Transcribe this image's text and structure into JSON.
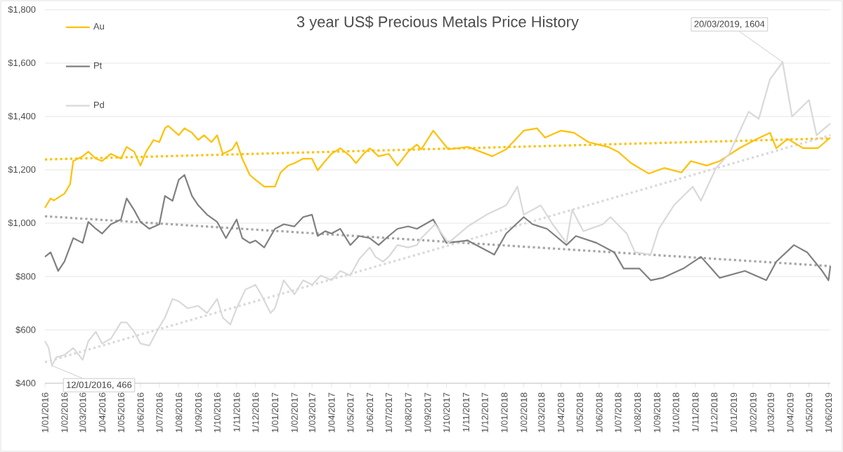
{
  "chart_data": {
    "type": "line",
    "title": "3 year US$ Precious Metals Price History",
    "xlim": [
      "2016-01-01",
      "2019-06-04"
    ],
    "xticks": [
      {
        "value": "2016-01-01",
        "label": "1/01/2016"
      },
      {
        "value": "2016-02-01",
        "label": "1/02/2016"
      },
      {
        "value": "2016-03-01",
        "label": "1/03/2016"
      },
      {
        "value": "2016-04-01",
        "label": "1/04/2016"
      },
      {
        "value": "2016-05-01",
        "label": "1/05/2016"
      },
      {
        "value": "2016-06-01",
        "label": "1/06/2016"
      },
      {
        "value": "2016-07-01",
        "label": "1/07/2016"
      },
      {
        "value": "2016-08-01",
        "label": "1/08/2016"
      },
      {
        "value": "2016-09-01",
        "label": "1/09/2016"
      },
      {
        "value": "2016-10-01",
        "label": "1/10/2016"
      },
      {
        "value": "2016-11-01",
        "label": "1/11/2016"
      },
      {
        "value": "2016-12-01",
        "label": "1/12/2016"
      },
      {
        "value": "2017-01-01",
        "label": "1/01/2017"
      },
      {
        "value": "2017-02-01",
        "label": "1/02/2017"
      },
      {
        "value": "2017-03-01",
        "label": "1/03/2017"
      },
      {
        "value": "2017-04-01",
        "label": "1/04/2017"
      },
      {
        "value": "2017-05-01",
        "label": "1/05/2017"
      },
      {
        "value": "2017-06-01",
        "label": "1/06/2017"
      },
      {
        "value": "2017-07-01",
        "label": "1/07/2017"
      },
      {
        "value": "2017-08-01",
        "label": "1/08/2017"
      },
      {
        "value": "2017-09-01",
        "label": "1/09/2017"
      },
      {
        "value": "2017-10-01",
        "label": "1/10/2017"
      },
      {
        "value": "2017-11-01",
        "label": "1/11/2017"
      },
      {
        "value": "2017-12-01",
        "label": "1/12/2017"
      },
      {
        "value": "2018-01-01",
        "label": "1/01/2018"
      },
      {
        "value": "2018-02-01",
        "label": "1/02/2018"
      },
      {
        "value": "2018-03-01",
        "label": "1/03/2018"
      },
      {
        "value": "2018-04-01",
        "label": "1/04/2018"
      },
      {
        "value": "2018-05-01",
        "label": "1/05/2018"
      },
      {
        "value": "2018-06-01",
        "label": "1/06/2018"
      },
      {
        "value": "2018-07-01",
        "label": "1/07/2018"
      },
      {
        "value": "2018-08-01",
        "label": "1/08/2018"
      },
      {
        "value": "2018-09-01",
        "label": "1/09/2018"
      },
      {
        "value": "2018-10-01",
        "label": "1/10/2018"
      },
      {
        "value": "2018-11-01",
        "label": "1/11/2018"
      },
      {
        "value": "2018-12-01",
        "label": "1/12/2018"
      },
      {
        "value": "2019-01-01",
        "label": "1/01/2019"
      },
      {
        "value": "2019-02-01",
        "label": "1/02/2019"
      },
      {
        "value": "2019-03-01",
        "label": "1/03/2019"
      },
      {
        "value": "2019-04-01",
        "label": "1/04/2019"
      },
      {
        "value": "2019-05-01",
        "label": "1/05/2019"
      },
      {
        "value": "2019-06-01",
        "label": "1/06/2019"
      }
    ],
    "ylim": [
      400,
      1800
    ],
    "yticks": [
      {
        "value": 400,
        "label": "$400"
      },
      {
        "value": 600,
        "label": "$600"
      },
      {
        "value": 800,
        "label": "$800"
      },
      {
        "value": 1000,
        "label": "$1,000"
      },
      {
        "value": 1200,
        "label": "$1,200"
      },
      {
        "value": 1400,
        "label": "$1,400"
      },
      {
        "value": 1600,
        "label": "$1,600"
      },
      {
        "value": 1800,
        "label": "$1,800"
      }
    ],
    "grid": "y",
    "legend": "top left",
    "series": [
      {
        "name": "Au",
        "color": "#ffc000",
        "x": [
          "2016-01-01",
          "2016-01-10",
          "2016-01-15",
          "2016-02-01",
          "2016-02-10",
          "2016-02-15",
          "2016-03-01",
          "2016-03-10",
          "2016-03-22",
          "2016-04-01",
          "2016-04-15",
          "2016-05-01",
          "2016-05-10",
          "2016-05-22",
          "2016-06-01",
          "2016-06-10",
          "2016-06-22",
          "2016-07-01",
          "2016-07-10",
          "2016-07-15",
          "2016-08-01",
          "2016-08-10",
          "2016-08-22",
          "2016-09-01",
          "2016-09-10",
          "2016-09-22",
          "2016-10-01",
          "2016-10-10",
          "2016-10-25",
          "2016-11-01",
          "2016-11-10",
          "2016-11-22",
          "2016-12-01",
          "2016-12-15",
          "2017-01-01",
          "2017-01-10",
          "2017-01-22",
          "2017-02-01",
          "2017-02-15",
          "2017-03-01",
          "2017-03-10",
          "2017-03-22",
          "2017-04-01",
          "2017-04-15",
          "2017-05-01",
          "2017-05-10",
          "2017-05-22",
          "2017-06-01",
          "2017-06-15",
          "2017-07-01",
          "2017-07-15",
          "2017-08-01",
          "2017-08-15",
          "2017-08-22",
          "2017-09-10",
          "2017-10-04",
          "2017-11-04",
          "2017-12-13",
          "2018-01-04",
          "2018-02-01",
          "2018-02-22",
          "2018-03-07",
          "2018-04-01",
          "2018-04-22",
          "2018-05-15",
          "2018-06-15",
          "2018-07-01",
          "2018-07-22",
          "2018-08-19",
          "2018-09-13",
          "2018-10-10",
          "2018-10-25",
          "2018-11-19",
          "2018-12-10",
          "2019-01-10",
          "2019-02-07",
          "2019-02-28",
          "2019-03-10",
          "2019-03-28",
          "2019-04-22",
          "2019-05-15",
          "2019-06-04"
        ],
        "values": [
          1058,
          1093,
          1085,
          1111,
          1146,
          1233,
          1251,
          1268,
          1242,
          1233,
          1260,
          1242,
          1286,
          1268,
          1216,
          1268,
          1312,
          1304,
          1356,
          1365,
          1330,
          1356,
          1339,
          1312,
          1330,
          1304,
          1330,
          1260,
          1277,
          1304,
          1242,
          1181,
          1163,
          1137,
          1137,
          1190,
          1216,
          1225,
          1242,
          1242,
          1198,
          1233,
          1260,
          1281,
          1251,
          1225,
          1260,
          1281,
          1251,
          1260,
          1216,
          1268,
          1295,
          1277,
          1347,
          1277,
          1286,
          1251,
          1277,
          1347,
          1356,
          1321,
          1347,
          1339,
          1304,
          1286,
          1268,
          1225,
          1186,
          1207,
          1190,
          1233,
          1216,
          1233,
          1281,
          1316,
          1339,
          1281,
          1316,
          1281,
          1281,
          1321
        ]
      },
      {
        "name": "Pt",
        "color": "#808080",
        "x": [
          "2016-01-01",
          "2016-01-10",
          "2016-01-22",
          "2016-02-01",
          "2016-02-15",
          "2016-03-01",
          "2016-03-10",
          "2016-03-22",
          "2016-04-01",
          "2016-04-15",
          "2016-05-01",
          "2016-05-10",
          "2016-05-22",
          "2016-06-01",
          "2016-06-15",
          "2016-07-01",
          "2016-07-10",
          "2016-07-22",
          "2016-08-01",
          "2016-08-10",
          "2016-08-22",
          "2016-09-01",
          "2016-09-15",
          "2016-10-01",
          "2016-10-15",
          "2016-11-01",
          "2016-11-10",
          "2016-11-22",
          "2016-12-01",
          "2016-12-15",
          "2017-01-01",
          "2017-01-15",
          "2017-02-01",
          "2017-02-15",
          "2017-03-01",
          "2017-03-10",
          "2017-03-22",
          "2017-04-01",
          "2017-04-15",
          "2017-05-01",
          "2017-05-15",
          "2017-06-01",
          "2017-06-15",
          "2017-07-01",
          "2017-07-15",
          "2017-08-01",
          "2017-08-15",
          "2017-09-10",
          "2017-10-01",
          "2017-11-04",
          "2017-12-16",
          "2018-01-04",
          "2018-02-01",
          "2018-02-15",
          "2018-03-10",
          "2018-04-10",
          "2018-04-25",
          "2018-05-28",
          "2018-06-25",
          "2018-07-10",
          "2018-08-04",
          "2018-08-22",
          "2018-09-10",
          "2018-10-13",
          "2018-11-10",
          "2018-12-10",
          "2019-01-19",
          "2019-02-22",
          "2019-03-10",
          "2019-04-07",
          "2019-04-28",
          "2019-05-22",
          "2019-06-01",
          "2019-06-04"
        ],
        "values": [
          874,
          891,
          821,
          856,
          944,
          926,
          1005,
          979,
          961,
          996,
          1014,
          1093,
          1049,
          1005,
          979,
          996,
          1102,
          1084,
          1163,
          1181,
          1102,
          1067,
          1032,
          1005,
          944,
          1014,
          944,
          926,
          935,
          909,
          979,
          996,
          988,
          1023,
          1032,
          952,
          970,
          961,
          979,
          918,
          952,
          944,
          918,
          952,
          979,
          988,
          979,
          1014,
          926,
          935,
          882,
          961,
          1023,
          996,
          979,
          918,
          952,
          926,
          891,
          830,
          830,
          786,
          795,
          830,
          874,
          795,
          821,
          786,
          856,
          918,
          891,
          821,
          786,
          839
        ]
      },
      {
        "name": "Pd",
        "color": "#d9d9d9",
        "x": [
          "2016-01-01",
          "2016-01-07",
          "2016-01-12",
          "2016-01-19",
          "2016-02-01",
          "2016-02-15",
          "2016-03-01",
          "2016-03-10",
          "2016-03-22",
          "2016-04-01",
          "2016-04-15",
          "2016-05-01",
          "2016-05-10",
          "2016-05-22",
          "2016-06-01",
          "2016-06-15",
          "2016-07-01",
          "2016-07-10",
          "2016-07-22",
          "2016-08-01",
          "2016-08-15",
          "2016-09-01",
          "2016-09-15",
          "2016-10-01",
          "2016-10-10",
          "2016-10-22",
          "2016-11-01",
          "2016-11-15",
          "2016-12-01",
          "2016-12-10",
          "2016-12-25",
          "2017-01-01",
          "2017-01-15",
          "2017-02-01",
          "2017-02-15",
          "2017-03-01",
          "2017-03-15",
          "2017-04-01",
          "2017-04-15",
          "2017-05-01",
          "2017-05-15",
          "2017-06-01",
          "2017-06-10",
          "2017-06-22",
          "2017-07-01",
          "2017-07-15",
          "2017-08-01",
          "2017-08-15",
          "2017-08-22",
          "2017-09-13",
          "2017-10-04",
          "2017-11-04",
          "2017-12-04",
          "2018-01-04",
          "2018-01-22",
          "2018-02-01",
          "2018-02-28",
          "2018-03-19",
          "2018-04-10",
          "2018-04-19",
          "2018-05-07",
          "2018-06-07",
          "2018-06-19",
          "2018-07-15",
          "2018-07-28",
          "2018-08-22",
          "2018-09-04",
          "2018-09-28",
          "2018-10-28",
          "2018-11-10",
          "2018-12-04",
          "2018-12-25",
          "2019-01-25",
          "2019-02-10",
          "2019-02-28",
          "2019-03-20",
          "2019-04-04",
          "2019-05-01",
          "2019-05-13",
          "2019-06-04"
        ],
        "values": [
          558,
          532,
          466,
          497,
          506,
          532,
          488,
          558,
          593,
          549,
          567,
          628,
          628,
          593,
          549,
          541,
          611,
          646,
          716,
          707,
          681,
          690,
          663,
          716,
          646,
          620,
          681,
          751,
          769,
          733,
          663,
          681,
          786,
          733,
          786,
          769,
          804,
          786,
          821,
          804,
          865,
          909,
          874,
          856,
          874,
          918,
          909,
          918,
          944,
          996,
          926,
          988,
          1032,
          1067,
          1137,
          1032,
          1067,
          996,
          926,
          1050,
          970,
          996,
          1023,
          961,
          891,
          882,
          979,
          1067,
          1137,
          1084,
          1207,
          1260,
          1418,
          1391,
          1540,
          1604,
          1400,
          1462,
          1330,
          1374
        ]
      },
      {
        "type": "line",
        "line_style": "dotted",
        "color": "#ffc000",
        "x": [
          "2016-01-01",
          "2019-06-04"
        ],
        "values": [
          1239,
          1318
        ]
      },
      {
        "type": "line",
        "line_style": "dotted",
        "color": "#a6a6a6",
        "x": [
          "2016-01-01",
          "2019-06-04"
        ],
        "values": [
          1026,
          839
        ]
      },
      {
        "type": "line",
        "line_style": "dotted",
        "color": "#d9d9d9",
        "x": [
          "2016-01-01",
          "2019-06-04"
        ],
        "values": [
          479,
          1330
        ]
      }
    ],
    "annotations": [
      {
        "text": "12/01/2016, 466",
        "x": "2016-01-12",
        "y": 466
      },
      {
        "text": "20/03/2019, 1604",
        "x": "2019-03-20",
        "y": 1604
      }
    ]
  }
}
